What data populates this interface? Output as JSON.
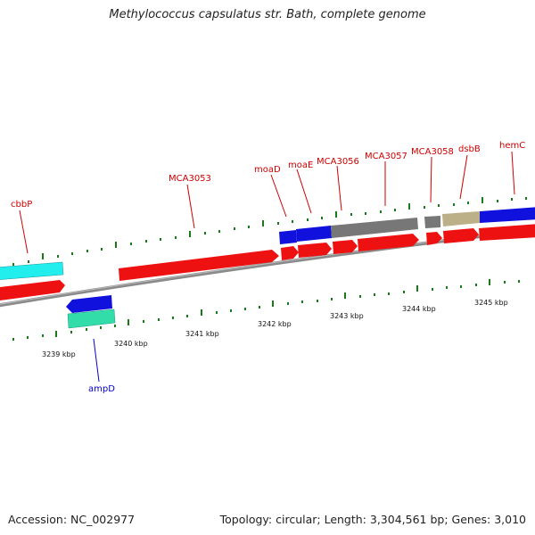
{
  "title": "Methylococcus capsulatus str. Bath, complete genome",
  "accession": "Accession: NC_002977",
  "topology": "Topology: circular; Length: 3,304,561 bp; Genes: 3,010",
  "colors": {
    "backbone": "#8a8a8a",
    "tick": "#1a7a1a",
    "cds_red": "#ee1111",
    "cds_blue": "#1111dd",
    "cds_cyan": "#22eeee",
    "cds_green": "#33ddaa",
    "cds_gray": "#777777",
    "cds_olive": "#bbb088",
    "label_red": "#cc0000",
    "label_blue": "#0000cc"
  },
  "kbp_labels": [
    "3239 kbp",
    "3240 kbp",
    "3241 kbp",
    "3242 kbp",
    "3243 kbp",
    "3244 kbp",
    "3245 kbp"
  ],
  "gene_labels": {
    "cbbP": "cbbP",
    "MCA3053": "MCA3053",
    "moaD": "moaD",
    "moaE": "moaE",
    "MCA3056": "MCA3056",
    "MCA3057": "MCA3057",
    "MCA3058": "MCA3058",
    "dsbB": "dsbB",
    "hemC": "hemC",
    "ampD": "ampD"
  }
}
